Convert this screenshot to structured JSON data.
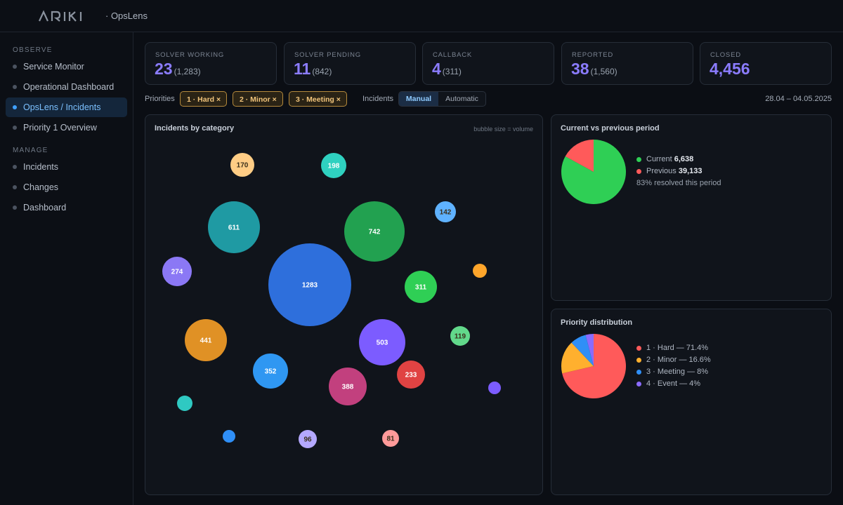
{
  "header": {
    "logo_text": "ARIKI",
    "app_name": "· OpsLens"
  },
  "sidebar": {
    "sections": [
      {
        "title": "OBSERVE",
        "items": [
          {
            "label": "Service Monitor",
            "icon": "dot-icon",
            "active": false
          },
          {
            "label": "Operational Dashboard",
            "icon": "dot-icon",
            "active": false
          },
          {
            "label": "OpsLens / Incidents",
            "icon": "dot-icon",
            "active": true
          },
          {
            "label": "Priority 1 Overview",
            "icon": "dot-icon",
            "active": false
          }
        ]
      },
      {
        "title": "MANAGE",
        "items": [
          {
            "label": "Incidents",
            "icon": "dot-icon",
            "active": false
          },
          {
            "label": "Changes",
            "icon": "dot-icon",
            "active": false
          },
          {
            "label": "Dashboard",
            "icon": "dot-icon",
            "active": false
          }
        ]
      }
    ]
  },
  "stats": [
    {
      "caption": "SOLVER WORKING",
      "value": "23",
      "sub": "(1,283)"
    },
    {
      "caption": "SOLVER PENDING",
      "value": "11",
      "sub": "(842)"
    },
    {
      "caption": "CALLBACK",
      "value": "4",
      "sub": "(311)"
    },
    {
      "caption": "REPORTED",
      "value": "38",
      "sub": "(1,560)"
    },
    {
      "caption": "CLOSED",
      "value": "4,456",
      "sub": ""
    }
  ],
  "filters": {
    "priorities_label": "Priorities",
    "chips": [
      "1 · Hard ×",
      "2 · Minor ×",
      "3 · Meeting ×"
    ],
    "incidents_label": "Incidents",
    "mode_options": [
      "Manual",
      "Automatic"
    ],
    "mode_selected": "Manual",
    "date_range": "28.04 – 04.05.2025"
  },
  "bubble_panel": {
    "title": "Incidents by category",
    "note": "bubble size = volume"
  },
  "comparison_panel": {
    "title": "Current vs previous period",
    "legend": [
      {
        "label": "Current",
        "value": "6,638",
        "color": "#2fcf55"
      },
      {
        "label": "Previous",
        "value": "39,133",
        "color": "#ff5a5a"
      }
    ],
    "footnote": "83% resolved this period"
  },
  "priority_panel": {
    "title": "Priority distribution",
    "legend": [
      {
        "label": "1 · Hard — 71.4%",
        "color": "#ff5a5a"
      },
      {
        "label": "2 · Minor — 16.6%",
        "color": "#ffb02e"
      },
      {
        "label": "3 · Meeting — 8%",
        "color": "#2f8ff7"
      },
      {
        "label": "4 · Event — 4%",
        "color": "#8b6bff"
      }
    ]
  },
  "chart_data": [
    {
      "type": "scatter",
      "title": "Incidents by category",
      "note": "bubble size = volume",
      "bubbles": [
        {
          "value": 1283,
          "label": "1283",
          "color": "#2e6fdc"
        },
        {
          "value": 742,
          "label": "742",
          "color": "#22a150"
        },
        {
          "value": 611,
          "label": "611",
          "color": "#1f9aa3"
        },
        {
          "value": 503,
          "label": "503",
          "color": "#7c5cff"
        },
        {
          "value": 441,
          "label": "441",
          "color": "#e09125"
        },
        {
          "value": 388,
          "label": "388",
          "color": "#c2407e"
        },
        {
          "value": 352,
          "label": "352",
          "color": "#2f97f2"
        },
        {
          "value": 311,
          "label": "311",
          "color": "#2fcf55"
        },
        {
          "value": 274,
          "label": "274",
          "color": "#8b78f5"
        },
        {
          "value": 233,
          "label": "233",
          "color": "#e04343"
        },
        {
          "value": 198,
          "label": "198",
          "color": "#2fd1c0"
        },
        {
          "value": 170,
          "label": "170",
          "color": "#ffcd85"
        },
        {
          "value": 142,
          "label": "142",
          "color": "#5fb2ff"
        },
        {
          "value": 119,
          "label": "119",
          "color": "#62d98b"
        },
        {
          "value": 96,
          "label": "96",
          "color": "#b4a8ff"
        },
        {
          "value": 81,
          "label": "81",
          "color": "#ff9a9a"
        },
        {
          "value": null,
          "label": "",
          "color": "#ffa62b"
        },
        {
          "value": null,
          "label": "",
          "color": "#2fc9c2"
        },
        {
          "value": null,
          "label": "",
          "color": "#7c5cff"
        },
        {
          "value": null,
          "label": "",
          "color": "#2f8ff7"
        }
      ]
    },
    {
      "type": "pie",
      "title": "Current vs previous period",
      "slices": [
        {
          "name": "Current",
          "value": 83,
          "color": "#2fcf55"
        },
        {
          "name": "Previous",
          "value": 17,
          "color": "#ff5a5a"
        }
      ]
    },
    {
      "type": "pie",
      "title": "Priority distribution",
      "slices": [
        {
          "name": "1 · Hard",
          "value": 71.4,
          "color": "#ff5a5a"
        },
        {
          "name": "2 · Minor",
          "value": 16.6,
          "color": "#ffb02e"
        },
        {
          "name": "3 · Meeting",
          "value": 8,
          "color": "#2f8ff7"
        },
        {
          "name": "4 · Event",
          "value": 4,
          "color": "#8b6bff"
        }
      ]
    }
  ]
}
